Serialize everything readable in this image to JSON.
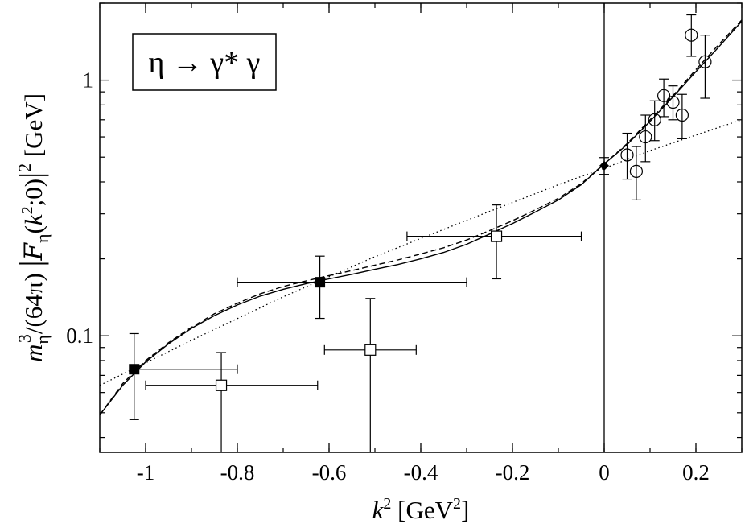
{
  "chart_data": {
    "type": "scatter",
    "title": "",
    "xlabel": "k² [GeV²]",
    "ylabel": "m_η³/(64π) |F_η(k²;0)|² [GeV]",
    "xlim": [
      -1.1,
      0.3
    ],
    "ylim": [
      0.035,
      2.0
    ],
    "y_scale": "log",
    "grid": false,
    "x_ticks": [
      -1,
      -0.8,
      -0.6,
      -0.4,
      -0.2,
      0,
      0.2
    ],
    "x_tick_labels": [
      "-1",
      "-0.8",
      "-0.6",
      "-0.4",
      "-0.2",
      "0",
      "0.2"
    ],
    "y_ticks": [
      0.1,
      1
    ],
    "y_tick_labels": [
      "0.1",
      "1"
    ],
    "vertical_line_x": 0,
    "annotation": "η → γ* γ",
    "series": [
      {
        "marker": "filled-square",
        "points": [
          {
            "x": -1.025,
            "y": 0.074,
            "xerr_lo": 0.0,
            "xerr_hi": 0.225,
            "yerr_lo": 0.027,
            "yerr_hi": 0.028
          },
          {
            "x": -0.62,
            "y": 0.162,
            "xerr_lo": 0.18,
            "xerr_hi": 0.32,
            "yerr_lo": 0.045,
            "yerr_hi": 0.043
          }
        ]
      },
      {
        "marker": "open-square",
        "points": [
          {
            "x": -0.835,
            "y": 0.064,
            "xerr_lo": 0.165,
            "xerr_hi": 0.21,
            "yerr_lo": 0.03,
            "yerr_hi": 0.022
          },
          {
            "x": -0.51,
            "y": 0.088,
            "xerr_lo": 0.1,
            "xerr_hi": 0.1,
            "yerr_lo": 0.055,
            "yerr_hi": 0.052
          },
          {
            "x": -0.235,
            "y": 0.245,
            "xerr_lo": 0.195,
            "xerr_hi": 0.185,
            "yerr_lo": 0.078,
            "yerr_hi": 0.08
          }
        ]
      },
      {
        "marker": "filled-diamond",
        "points": [
          {
            "x": 0.0,
            "y": 0.463,
            "xerr_lo": 0,
            "xerr_hi": 0,
            "yerr_lo": 0.035,
            "yerr_hi": 0.035
          }
        ]
      },
      {
        "marker": "open-circle",
        "points": [
          {
            "x": 0.05,
            "y": 0.51,
            "yerr_lo": 0.1,
            "yerr_hi": 0.11
          },
          {
            "x": 0.07,
            "y": 0.44,
            "yerr_lo": 0.1,
            "yerr_hi": 0.11
          },
          {
            "x": 0.09,
            "y": 0.6,
            "yerr_lo": 0.12,
            "yerr_hi": 0.13
          },
          {
            "x": 0.11,
            "y": 0.7,
            "yerr_lo": 0.12,
            "yerr_hi": 0.13
          },
          {
            "x": 0.13,
            "y": 0.87,
            "yerr_lo": 0.15,
            "yerr_hi": 0.14
          },
          {
            "x": 0.15,
            "y": 0.82,
            "yerr_lo": 0.12,
            "yerr_hi": 0.13
          },
          {
            "x": 0.17,
            "y": 0.73,
            "yerr_lo": 0.14,
            "yerr_hi": 0.15
          },
          {
            "x": 0.19,
            "y": 1.5,
            "yerr_lo": 0.26,
            "yerr_hi": 0.3
          },
          {
            "x": 0.22,
            "y": 1.18,
            "yerr_lo": 0.33,
            "yerr_hi": 0.32
          }
        ]
      }
    ],
    "curves": [
      {
        "style": "solid",
        "x": [
          -1.1,
          -1.05,
          -1.0,
          -0.95,
          -0.9,
          -0.85,
          -0.8,
          -0.75,
          -0.7,
          -0.65,
          -0.6,
          -0.55,
          -0.5,
          -0.45,
          -0.4,
          -0.35,
          -0.3,
          -0.25,
          -0.2,
          -0.15,
          -0.1,
          -0.05,
          0.0,
          0.05,
          0.1,
          0.15,
          0.2,
          0.25,
          0.3
        ],
        "y": [
          0.049,
          0.064,
          0.079,
          0.093,
          0.107,
          0.12,
          0.132,
          0.143,
          0.152,
          0.16,
          0.167,
          0.174,
          0.182,
          0.19,
          0.2,
          0.212,
          0.228,
          0.25,
          0.275,
          0.305,
          0.34,
          0.39,
          0.47,
          0.56,
          0.69,
          0.86,
          1.08,
          1.35,
          1.7
        ]
      },
      {
        "style": "dashed",
        "x": [
          -1.1,
          -1.05,
          -1.0,
          -0.95,
          -0.9,
          -0.85,
          -0.8,
          -0.75,
          -0.7,
          -0.65,
          -0.6,
          -0.55,
          -0.5,
          -0.45,
          -0.4,
          -0.35,
          -0.3,
          -0.25,
          -0.2,
          -0.15,
          -0.1,
          -0.05,
          0.0,
          0.05,
          0.1,
          0.15,
          0.2,
          0.25,
          0.3
        ],
        "y": [
          0.049,
          0.065,
          0.08,
          0.094,
          0.108,
          0.122,
          0.134,
          0.146,
          0.156,
          0.164,
          0.172,
          0.18,
          0.189,
          0.198,
          0.209,
          0.221,
          0.237,
          0.258,
          0.282,
          0.311,
          0.345,
          0.394,
          0.47,
          0.565,
          0.7,
          0.87,
          1.1,
          1.38,
          1.72
        ]
      },
      {
        "style": "dotted",
        "x": [
          -1.1,
          -0.9,
          -0.7,
          -0.5,
          -0.3,
          -0.1,
          0.0,
          0.1,
          0.2,
          0.3
        ],
        "y": [
          0.064,
          0.096,
          0.142,
          0.204,
          0.283,
          0.39,
          0.452,
          0.53,
          0.61,
          0.7
        ]
      }
    ]
  }
}
